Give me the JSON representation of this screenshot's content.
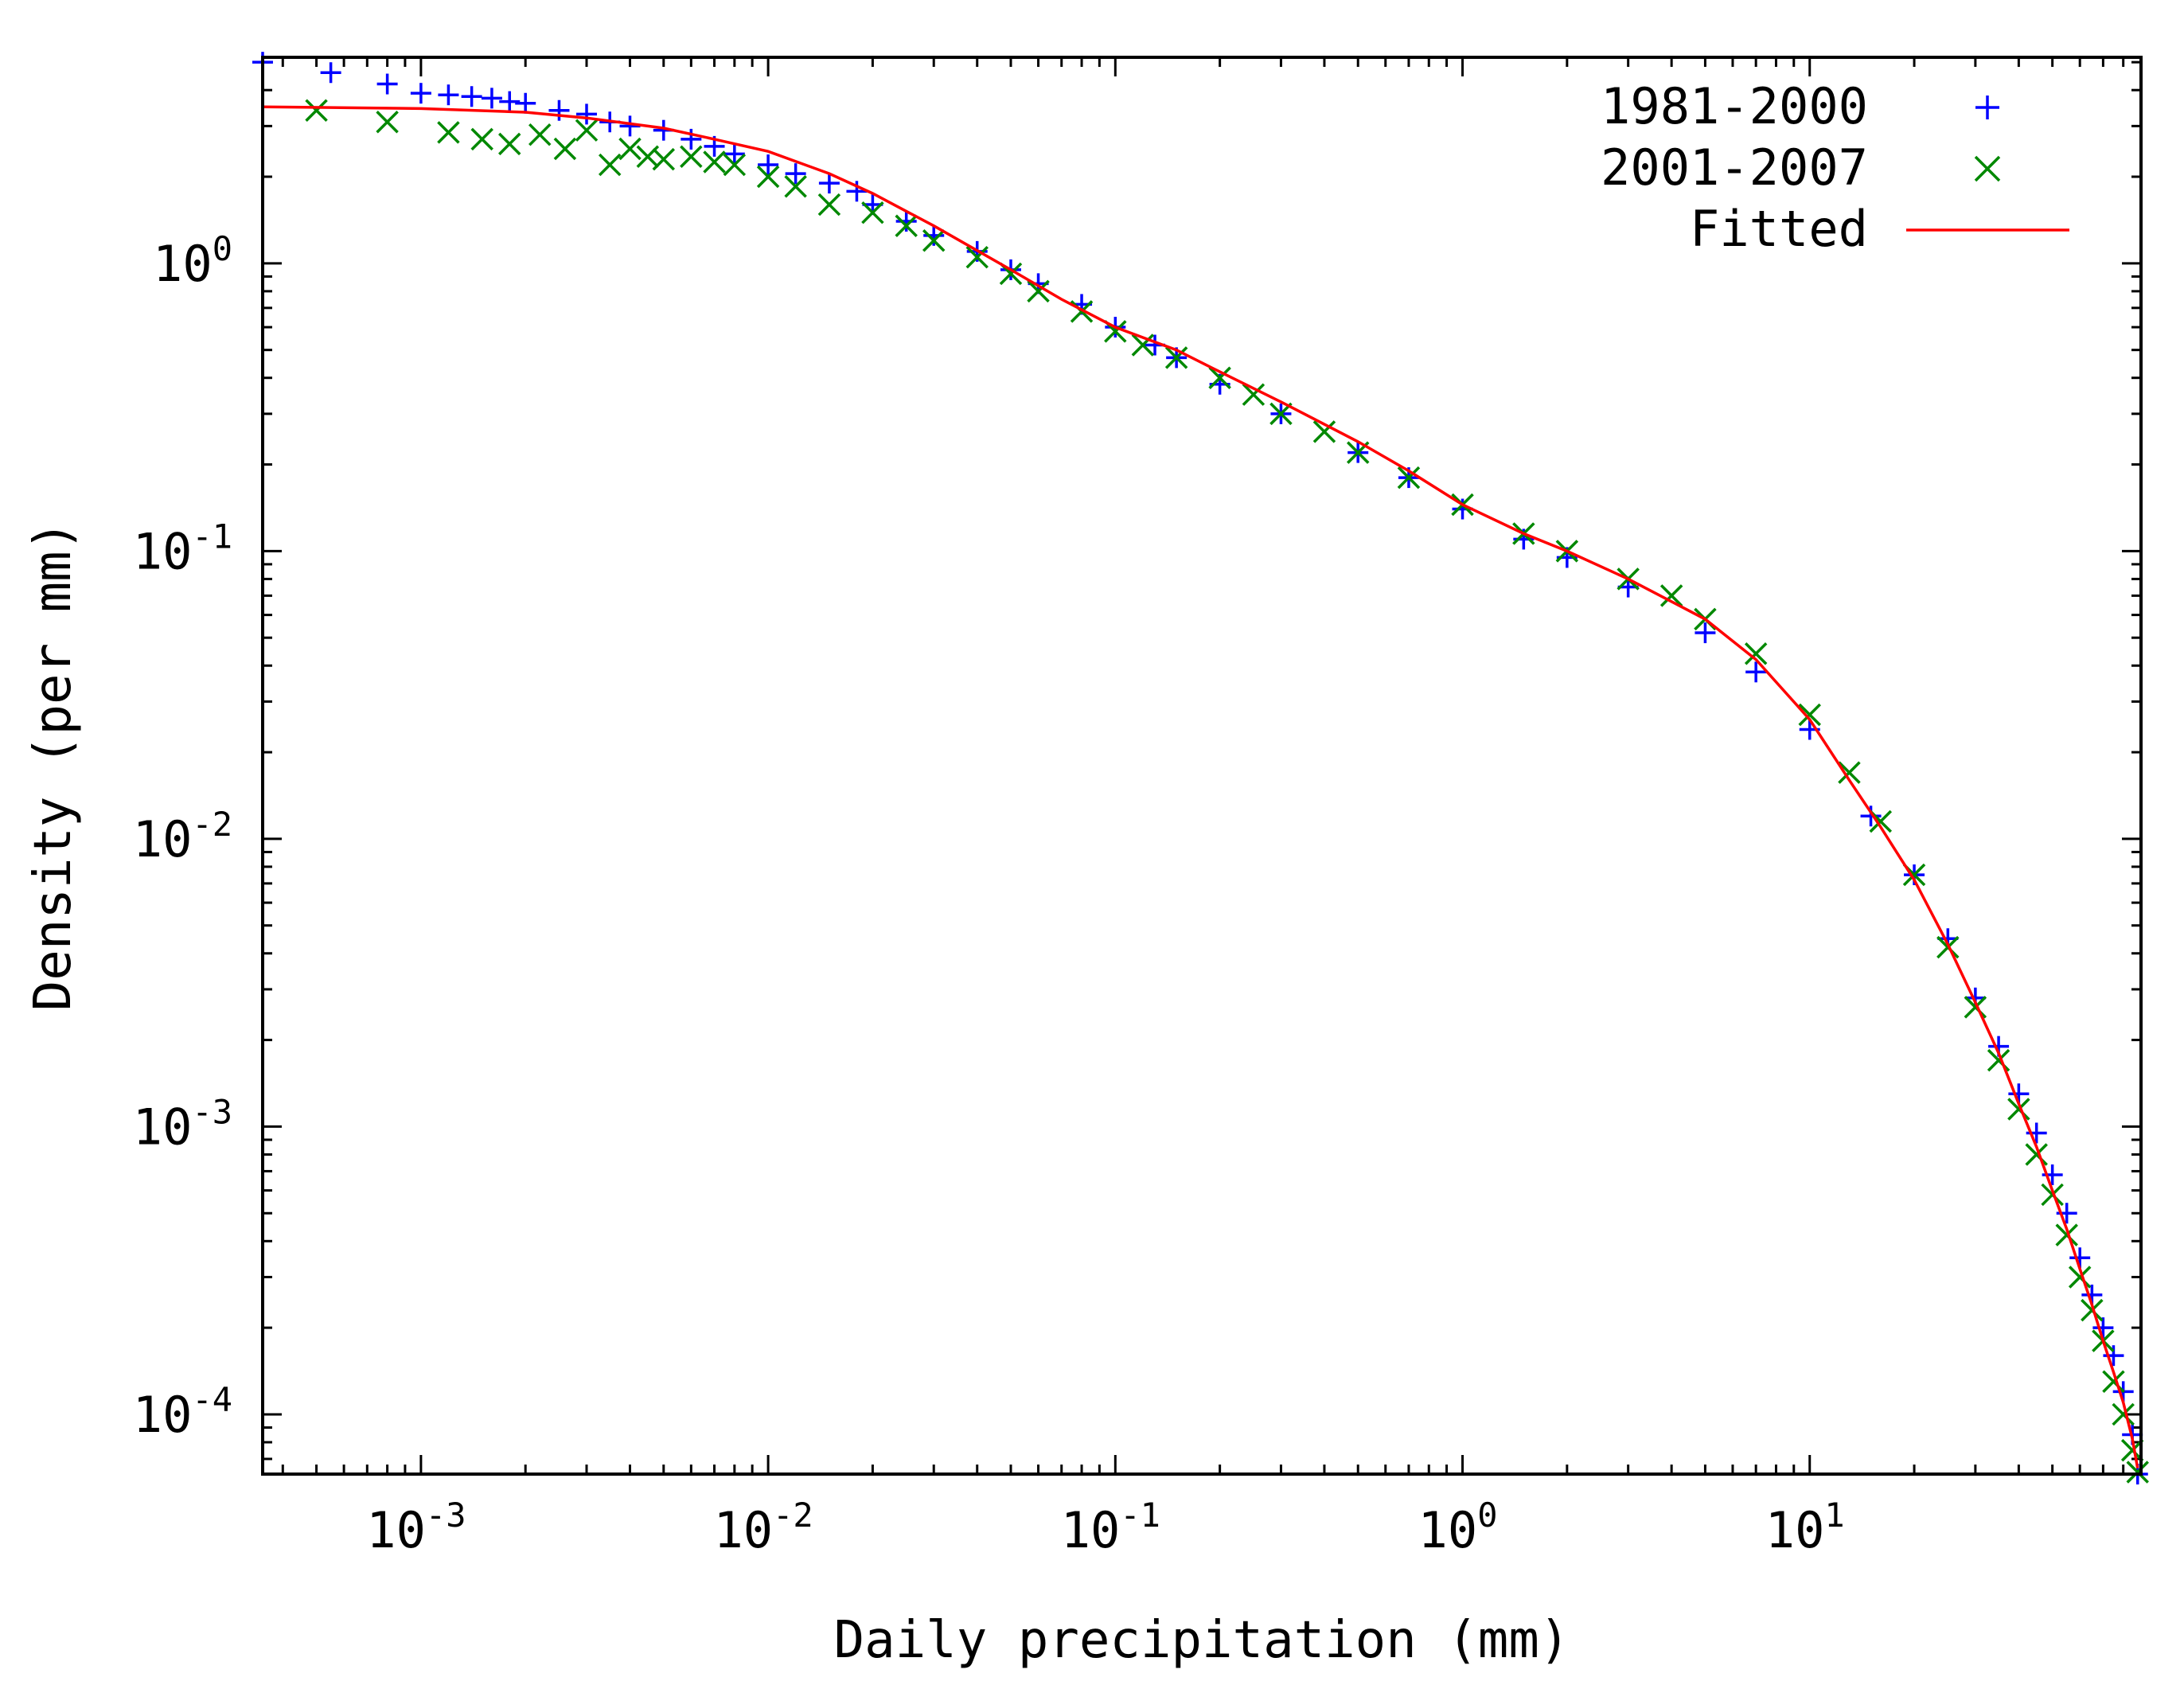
{
  "chart_data": {
    "type": "scatter",
    "title": "",
    "xlabel": "Daily precipitation (mm)",
    "ylabel": "Density (per mm)",
    "xscale": "log",
    "yscale": "log",
    "xlim": [
      0.00035,
      90
    ],
    "ylim": [
      6.2e-05,
      5.2
    ],
    "x_ticks": [
      {
        "value": 0.001,
        "base": "10",
        "exp": "-3"
      },
      {
        "value": 0.01,
        "base": "10",
        "exp": "-2"
      },
      {
        "value": 0.1,
        "base": "10",
        "exp": "-1"
      },
      {
        "value": 1,
        "base": "10",
        "exp": "0"
      },
      {
        "value": 10,
        "base": "10",
        "exp": "1"
      }
    ],
    "y_ticks": [
      {
        "value": 0.0001,
        "base": "10",
        "exp": "-4"
      },
      {
        "value": 0.001,
        "base": "10",
        "exp": "-3"
      },
      {
        "value": 0.01,
        "base": "10",
        "exp": "-2"
      },
      {
        "value": 0.1,
        "base": "10",
        "exp": "-1"
      },
      {
        "value": 1,
        "base": "10",
        "exp": "0"
      }
    ],
    "grid": false,
    "legend_position": "top-right",
    "series": [
      {
        "name": "1981-2000",
        "marker": "plus",
        "color": "#0000ff",
        "x": [
          0.00035,
          0.00055,
          0.0008,
          0.001,
          0.0012,
          0.0014,
          0.0016,
          0.0018,
          0.002,
          0.0025,
          0.003,
          0.0035,
          0.004,
          0.005,
          0.006,
          0.007,
          0.008,
          0.01,
          0.012,
          0.015,
          0.018,
          0.02,
          0.025,
          0.03,
          0.04,
          0.05,
          0.06,
          0.08,
          0.1,
          0.13,
          0.15,
          0.2,
          0.3,
          0.5,
          0.7,
          1,
          1.5,
          2,
          3,
          5,
          7,
          10,
          15,
          20,
          25,
          30,
          35,
          40,
          45,
          50,
          55,
          60,
          65,
          70,
          75,
          80,
          85,
          88
        ],
        "y": [
          5.0,
          4.6,
          4.2,
          3.9,
          3.85,
          3.8,
          3.75,
          3.65,
          3.6,
          3.4,
          3.3,
          3.1,
          3.0,
          2.9,
          2.7,
          2.55,
          2.4,
          2.2,
          2.05,
          1.9,
          1.78,
          1.6,
          1.4,
          1.25,
          1.1,
          0.95,
          0.85,
          0.72,
          0.6,
          0.52,
          0.47,
          0.38,
          0.3,
          0.22,
          0.18,
          0.14,
          0.11,
          0.095,
          0.075,
          0.052,
          0.038,
          0.024,
          0.012,
          0.0075,
          0.0045,
          0.0028,
          0.0019,
          0.0013,
          0.00095,
          0.00068,
          0.0005,
          0.00035,
          0.00026,
          0.0002,
          0.00016,
          0.00012,
          8.5e-05,
          6.2e-05
        ]
      },
      {
        "name": "2001-2007",
        "marker": "cross",
        "color": "#008800",
        "x": [
          0.0005,
          0.0008,
          0.0012,
          0.0015,
          0.0018,
          0.0022,
          0.0026,
          0.003,
          0.0035,
          0.004,
          0.0045,
          0.005,
          0.006,
          0.007,
          0.008,
          0.01,
          0.012,
          0.015,
          0.02,
          0.025,
          0.03,
          0.04,
          0.05,
          0.06,
          0.08,
          0.1,
          0.12,
          0.15,
          0.2,
          0.25,
          0.3,
          0.4,
          0.5,
          0.7,
          1,
          1.5,
          2,
          3,
          4,
          5,
          7,
          10,
          13,
          16,
          20,
          25,
          30,
          35,
          40,
          45,
          50,
          55,
          60,
          65,
          70,
          75,
          80,
          85,
          88
        ],
        "y": [
          3.4,
          3.1,
          2.85,
          2.7,
          2.6,
          2.8,
          2.5,
          2.9,
          2.2,
          2.5,
          2.35,
          2.3,
          2.35,
          2.25,
          2.2,
          2.0,
          1.85,
          1.6,
          1.5,
          1.35,
          1.2,
          1.05,
          0.92,
          0.8,
          0.68,
          0.58,
          0.52,
          0.47,
          0.4,
          0.35,
          0.3,
          0.26,
          0.22,
          0.18,
          0.145,
          0.115,
          0.1,
          0.08,
          0.07,
          0.058,
          0.044,
          0.027,
          0.017,
          0.0115,
          0.0075,
          0.0042,
          0.0026,
          0.0017,
          0.00115,
          0.0008,
          0.00058,
          0.00042,
          0.0003,
          0.00023,
          0.00018,
          0.00013,
          0.0001,
          7.5e-05,
          6.3e-05
        ]
      },
      {
        "name": "Fitted",
        "marker": "line",
        "color": "#ff0000",
        "x": [
          0.00035,
          0.001,
          0.002,
          0.003,
          0.005,
          0.007,
          0.01,
          0.015,
          0.02,
          0.03,
          0.05,
          0.07,
          0.1,
          0.15,
          0.2,
          0.3,
          0.5,
          0.7,
          1,
          1.5,
          2,
          3,
          5,
          7,
          10,
          13,
          16,
          20,
          25,
          30,
          35,
          40,
          45,
          50,
          55,
          60,
          65,
          70,
          75,
          80,
          85,
          88
        ],
        "y": [
          3.5,
          3.45,
          3.35,
          3.2,
          2.95,
          2.7,
          2.45,
          2.05,
          1.75,
          1.35,
          0.95,
          0.75,
          0.6,
          0.5,
          0.42,
          0.33,
          0.24,
          0.19,
          0.145,
          0.115,
          0.1,
          0.08,
          0.058,
          0.042,
          0.026,
          0.016,
          0.011,
          0.0072,
          0.0043,
          0.0027,
          0.0018,
          0.0012,
          0.00085,
          0.0006,
          0.00044,
          0.00032,
          0.00024,
          0.00018,
          0.00014,
          0.00011,
          8.2e-05,
          6.5e-05
        ]
      }
    ]
  }
}
